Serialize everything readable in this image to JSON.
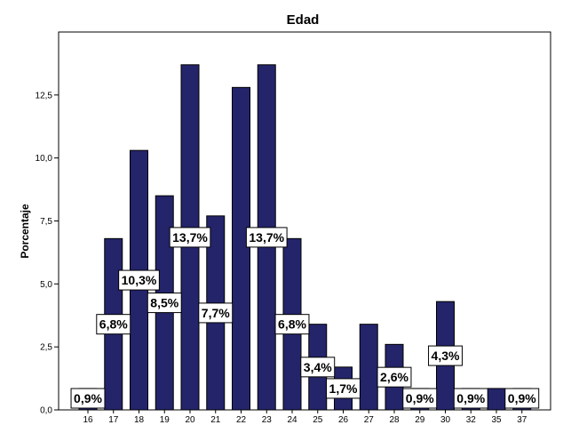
{
  "chart_data": {
    "type": "bar",
    "title": "Edad",
    "ylabel": "Porcentaje",
    "xlabel": "",
    "categories": [
      "16",
      "17",
      "18",
      "19",
      "20",
      "21",
      "22",
      "23",
      "24",
      "25",
      "26",
      "27",
      "28",
      "29",
      "30",
      "32",
      "35",
      "37"
    ],
    "values": [
      0.85,
      6.8,
      10.3,
      8.5,
      13.7,
      7.7,
      12.8,
      13.7,
      6.8,
      3.4,
      1.7,
      3.4,
      2.6,
      0.85,
      4.3,
      0.85,
      0.85,
      0.85
    ],
    "data_labels": [
      "0,9%",
      "6,8%",
      "10,3%",
      "8,5%",
      "13,7%",
      "7,7%",
      "",
      "13,7%",
      "6,8%",
      "3,4%",
      "1,7%",
      "",
      "2,6%",
      "0,9%",
      "4,3%",
      "0,9%",
      "",
      "0,9%"
    ],
    "ylim": [
      0,
      15
    ],
    "yticks": [
      0,
      2.5,
      5,
      7.5,
      10,
      12.5
    ],
    "ytick_labels": [
      "0,0",
      "2,5",
      "5,0",
      "7,5",
      "10,0",
      "12,5"
    ],
    "bar_color": "#24246b",
    "grid": false
  }
}
